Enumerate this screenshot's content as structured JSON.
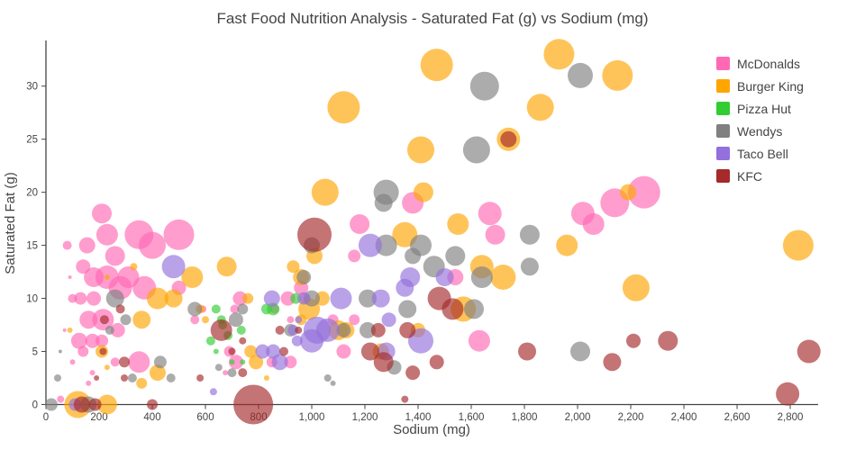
{
  "chart_data": {
    "type": "scatter",
    "title": "Fast Food Nutrition Analysis - Saturated Fat (g) vs Sodium (mg)",
    "xlabel": "Sodium (mg)",
    "ylabel": "Saturated Fat (g)",
    "xlim": [
      0,
      2905
    ],
    "ylim": [
      0,
      34.3
    ],
    "grid": false,
    "legend_position": "top-right",
    "marker_opacity": 0.65,
    "x_tick_values": [
      0,
      200,
      400,
      600,
      800,
      1000,
      1200,
      1400,
      1600,
      1800,
      2000,
      2200,
      2400,
      2600,
      2800
    ],
    "x_tick_labels": [
      "0",
      "200",
      "400",
      "600",
      "800",
      "1,000",
      "1,200",
      "1,400",
      "1,600",
      "1,800",
      "2,000",
      "2,200",
      "2,400",
      "2,600",
      "2,800"
    ],
    "y_tick_values": [
      0,
      5,
      10,
      15,
      20,
      25,
      30
    ],
    "y_tick_labels": [
      "0",
      "5",
      "10",
      "15",
      "20",
      "25",
      "30"
    ],
    "point_format": "[sodium_mg, saturated_fat_g, bubble_radius_px]",
    "series": [
      {
        "name": "McDonalds",
        "color": "#FF69B4",
        "points": [
          [
            210,
            18,
            11
          ],
          [
            230,
            16,
            12
          ],
          [
            350,
            16,
            16
          ],
          [
            400,
            15,
            15
          ],
          [
            500,
            16,
            17
          ],
          [
            155,
            15,
            9
          ],
          [
            80,
            15,
            5
          ],
          [
            140,
            13,
            8
          ],
          [
            90,
            12,
            2
          ],
          [
            260,
            14,
            11
          ],
          [
            180,
            12,
            11
          ],
          [
            230,
            12,
            13
          ],
          [
            280,
            11,
            13
          ],
          [
            310,
            12,
            12
          ],
          [
            370,
            11,
            13
          ],
          [
            100,
            10,
            5
          ],
          [
            130,
            10,
            7
          ],
          [
            180,
            10,
            8
          ],
          [
            500,
            11,
            8
          ],
          [
            730,
            10,
            8
          ],
          [
            710,
            9,
            5
          ],
          [
            860,
            9,
            5
          ],
          [
            910,
            10,
            8
          ],
          [
            975,
            10,
            6
          ],
          [
            960,
            11,
            8
          ],
          [
            160,
            8,
            10
          ],
          [
            215,
            8,
            12
          ],
          [
            270,
            7,
            8
          ],
          [
            560,
            8,
            5
          ],
          [
            590,
            9,
            4
          ],
          [
            690,
            5,
            6
          ],
          [
            715,
            4,
            8
          ],
          [
            125,
            6,
            9
          ],
          [
            175,
            6,
            8
          ],
          [
            210,
            6,
            7
          ],
          [
            140,
            5,
            6
          ],
          [
            70,
            7,
            2
          ],
          [
            100,
            4,
            3
          ],
          [
            175,
            3,
            3
          ],
          [
            260,
            4,
            5
          ],
          [
            350,
            4,
            12
          ],
          [
            160,
            2,
            3
          ],
          [
            675,
            3,
            3
          ],
          [
            850,
            4,
            6
          ],
          [
            920,
            4,
            7
          ],
          [
            920,
            8,
            4
          ],
          [
            1080,
            8,
            6
          ],
          [
            1160,
            8,
            6
          ],
          [
            1160,
            14,
            7
          ],
          [
            1180,
            17,
            11
          ],
          [
            1380,
            19,
            12
          ],
          [
            1120,
            5,
            8
          ],
          [
            1540,
            12,
            9
          ],
          [
            1630,
            6,
            12
          ],
          [
            1670,
            18,
            13
          ],
          [
            1690,
            16,
            11
          ],
          [
            2020,
            18,
            13
          ],
          [
            2060,
            17,
            12
          ],
          [
            2140,
            19,
            16
          ],
          [
            2250,
            20,
            18
          ],
          [
            55,
            0.5,
            4
          ]
        ]
      },
      {
        "name": "Burger King",
        "color": "#FFA500",
        "points": [
          [
            1120,
            28,
            18
          ],
          [
            1470,
            32,
            18
          ],
          [
            1930,
            33,
            17
          ],
          [
            2150,
            31,
            17
          ],
          [
            1860,
            28,
            15
          ],
          [
            1410,
            24,
            15
          ],
          [
            1740,
            25,
            13
          ],
          [
            1050,
            20,
            15
          ],
          [
            1420,
            20,
            11
          ],
          [
            2190,
            20,
            9
          ],
          [
            1550,
            17,
            12
          ],
          [
            1350,
            16,
            14
          ],
          [
            1960,
            15,
            12
          ],
          [
            2830,
            15,
            17
          ],
          [
            1640,
            13,
            13
          ],
          [
            1010,
            14,
            9
          ],
          [
            1720,
            12,
            14
          ],
          [
            2220,
            11,
            15
          ],
          [
            930,
            13,
            7
          ],
          [
            960,
            12,
            9
          ],
          [
            960,
            8,
            6
          ],
          [
            680,
            13,
            11
          ],
          [
            550,
            12,
            12
          ],
          [
            330,
            13,
            4
          ],
          [
            230,
            12,
            3
          ],
          [
            420,
            10,
            12
          ],
          [
            480,
            10,
            10
          ],
          [
            760,
            10,
            6
          ],
          [
            990,
            9,
            12
          ],
          [
            1040,
            10,
            8
          ],
          [
            1100,
            7,
            11
          ],
          [
            1130,
            7,
            9
          ],
          [
            1400,
            7,
            8
          ],
          [
            1260,
            5,
            9
          ],
          [
            1570,
            9,
            14
          ],
          [
            360,
            8,
            10
          ],
          [
            600,
            8,
            4
          ],
          [
            580,
            9,
            5
          ],
          [
            90,
            7,
            3
          ],
          [
            210,
            5,
            7
          ],
          [
            230,
            3.5,
            3
          ],
          [
            360,
            2,
            6
          ],
          [
            420,
            3,
            9
          ],
          [
            770,
            5,
            7
          ],
          [
            790,
            4,
            8
          ],
          [
            830,
            2.5,
            3
          ],
          [
            120,
            0,
            15
          ],
          [
            230,
            0,
            11
          ]
        ]
      },
      {
        "name": "Pizza Hut",
        "color": "#32CD32",
        "points": [
          [
            620,
            6,
            5
          ],
          [
            640,
            5,
            3
          ],
          [
            640,
            9,
            5
          ],
          [
            660,
            8,
            5
          ],
          [
            665,
            7.5,
            5
          ],
          [
            685,
            6.5,
            5
          ],
          [
            700,
            4,
            3
          ],
          [
            740,
            4,
            3
          ],
          [
            735,
            7,
            5
          ],
          [
            830,
            9,
            6
          ],
          [
            855,
            9,
            7
          ],
          [
            940,
            10,
            6
          ]
        ]
      },
      {
        "name": "Wendys",
        "color": "#808080",
        "points": [
          [
            1650,
            30,
            16
          ],
          [
            2010,
            31,
            14
          ],
          [
            1620,
            24,
            15
          ],
          [
            1280,
            20,
            14
          ],
          [
            1270,
            19,
            10
          ],
          [
            1820,
            16,
            11
          ],
          [
            1820,
            13,
            10
          ],
          [
            1000,
            15,
            9
          ],
          [
            1280,
            15,
            12
          ],
          [
            1410,
            15,
            12
          ],
          [
            1380,
            14,
            9
          ],
          [
            1540,
            14,
            11
          ],
          [
            1460,
            13,
            12
          ],
          [
            1640,
            12,
            12
          ],
          [
            970,
            12,
            8
          ],
          [
            1000,
            10,
            9
          ],
          [
            1210,
            10,
            10
          ],
          [
            1120,
            7,
            8
          ],
          [
            1210,
            7,
            9
          ],
          [
            1360,
            9,
            10
          ],
          [
            1610,
            9,
            11
          ],
          [
            2010,
            5,
            11
          ],
          [
            920,
            7,
            7
          ],
          [
            715,
            8,
            8
          ],
          [
            740,
            9,
            6
          ],
          [
            560,
            9,
            8
          ],
          [
            260,
            10,
            10
          ],
          [
            300,
            8,
            6
          ],
          [
            240,
            7,
            5
          ],
          [
            650,
            3.5,
            4
          ],
          [
            700,
            3,
            5
          ],
          [
            470,
            2.5,
            5
          ],
          [
            430,
            4,
            7
          ],
          [
            325,
            2.5,
            5
          ],
          [
            44,
            2.5,
            4
          ],
          [
            54,
            5,
            2
          ],
          [
            20,
            0,
            7
          ],
          [
            160,
            0,
            9
          ],
          [
            1310,
            3.5,
            8
          ],
          [
            1060,
            2.5,
            4
          ],
          [
            1080,
            2,
            3
          ]
        ]
      },
      {
        "name": "Taco Bell",
        "color": "#9370DB",
        "points": [
          [
            480,
            13,
            13
          ],
          [
            1220,
            15,
            13
          ],
          [
            1370,
            12,
            11
          ],
          [
            1350,
            11,
            10
          ],
          [
            1500,
            12,
            10
          ],
          [
            1260,
            10,
            10
          ],
          [
            1110,
            10,
            12
          ],
          [
            970,
            10,
            7
          ],
          [
            1020,
            7,
            15
          ],
          [
            1060,
            7,
            13
          ],
          [
            1000,
            6,
            13
          ],
          [
            1290,
            8,
            8
          ],
          [
            1410,
            6,
            14
          ],
          [
            1280,
            5,
            10
          ],
          [
            930,
            7,
            6
          ],
          [
            945,
            6,
            6
          ],
          [
            850,
            10,
            9
          ],
          [
            815,
            5,
            8
          ],
          [
            855,
            5,
            8
          ],
          [
            880,
            4,
            9
          ],
          [
            950,
            8,
            4
          ],
          [
            630,
            1.2,
            4
          ],
          [
            110,
            0,
            7
          ]
        ]
      },
      {
        "name": "KFC",
        "color": "#A52A2A",
        "points": [
          [
            1010,
            16,
            19
          ],
          [
            1740,
            25,
            9
          ],
          [
            1250,
            7,
            8
          ],
          [
            1360,
            7,
            9
          ],
          [
            1220,
            5,
            10
          ],
          [
            1270,
            4,
            11
          ],
          [
            1380,
            3,
            8
          ],
          [
            1470,
            4,
            8
          ],
          [
            1480,
            10,
            13
          ],
          [
            1530,
            9,
            12
          ],
          [
            1810,
            5,
            10
          ],
          [
            2130,
            4,
            10
          ],
          [
            2210,
            6,
            8
          ],
          [
            2340,
            6,
            11
          ],
          [
            2790,
            1,
            13
          ],
          [
            2870,
            5,
            13
          ],
          [
            880,
            7,
            5
          ],
          [
            950,
            7,
            4
          ],
          [
            660,
            7,
            12
          ],
          [
            740,
            6,
            4
          ],
          [
            700,
            5,
            4
          ],
          [
            895,
            5,
            5
          ],
          [
            280,
            9,
            5
          ],
          [
            220,
            8,
            5
          ],
          [
            215,
            5,
            4
          ],
          [
            295,
            4,
            6
          ],
          [
            190,
            2.5,
            3
          ],
          [
            295,
            2.5,
            4
          ],
          [
            580,
            2.5,
            4
          ],
          [
            740,
            3,
            5
          ],
          [
            780,
            0,
            22
          ],
          [
            400,
            0,
            6
          ],
          [
            1350,
            0.5,
            4
          ],
          [
            135,
            0,
            9
          ],
          [
            185,
            0,
            7
          ]
        ]
      }
    ]
  }
}
